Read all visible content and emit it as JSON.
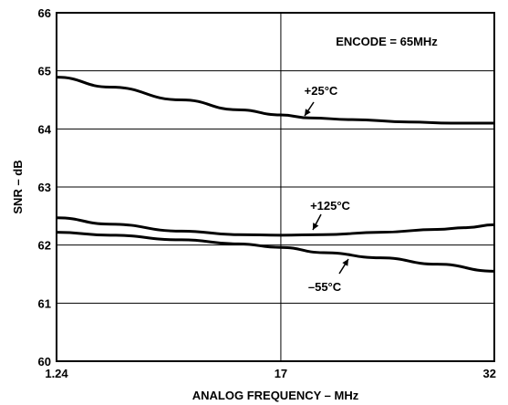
{
  "chart_data": {
    "type": "line",
    "title": "",
    "xlabel": "ANALOG FREQUENCY – MHz",
    "ylabel": "SNR – dB",
    "x_ticks": [
      1.24,
      17,
      32
    ],
    "x_tick_labels": [
      "1.24",
      "17",
      "32"
    ],
    "y_ticks": [
      60,
      61,
      62,
      63,
      64,
      65,
      66
    ],
    "y_tick_labels": [
      "60",
      "61",
      "62",
      "63",
      "64",
      "65",
      "66"
    ],
    "xlim": [
      1.24,
      32
    ],
    "ylim": [
      60,
      66
    ],
    "grid": true,
    "annotations": [
      {
        "text": "ENCODE = 65MHz"
      }
    ],
    "series": [
      {
        "name": "+25°C",
        "x": [
          1.24,
          5,
          10,
          14,
          17,
          19,
          22,
          26,
          29,
          32
        ],
        "y": [
          64.89,
          64.72,
          64.5,
          64.33,
          64.24,
          64.19,
          64.16,
          64.12,
          64.1,
          64.1
        ]
      },
      {
        "name": "+125°C",
        "x": [
          1.24,
          5,
          10,
          14,
          17,
          20,
          24,
          28,
          30,
          32
        ],
        "y": [
          62.47,
          62.36,
          62.24,
          62.18,
          62.17,
          62.18,
          62.22,
          62.27,
          62.3,
          62.35
        ]
      },
      {
        "name": "–55°C",
        "x": [
          1.24,
          5,
          10,
          14,
          17,
          20,
          24,
          28,
          32
        ],
        "y": [
          62.22,
          62.17,
          62.09,
          62.02,
          61.96,
          61.87,
          61.78,
          61.67,
          61.55
        ]
      }
    ]
  }
}
